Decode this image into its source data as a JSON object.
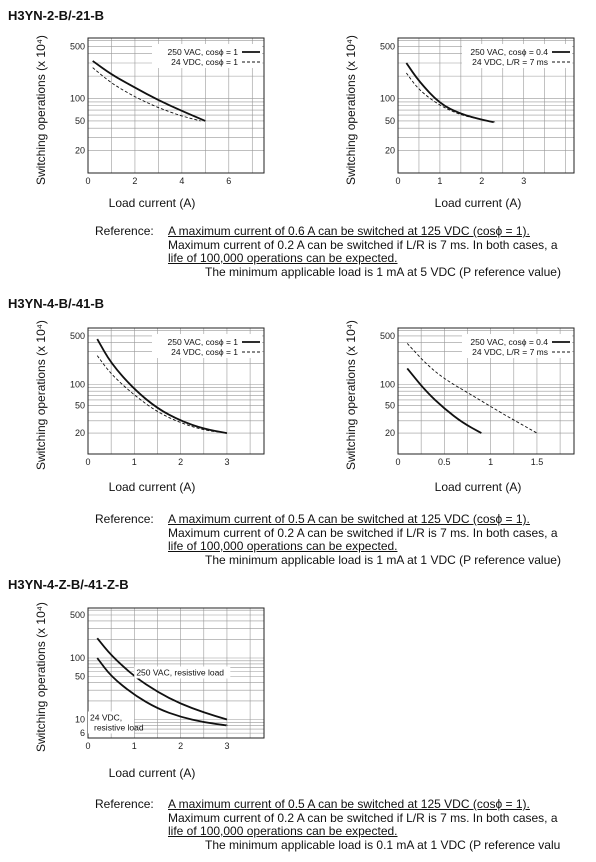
{
  "sections": [
    {
      "title": "H3YN-2-B/-21-B",
      "reference": {
        "label": "Reference:",
        "lines": [
          "A maximum current of 0.6 A can be switched at 125 VDC (cosϕ = 1).",
          "Maximum current of 0.2 A can be switched if L/R is 7 ms. In both cases, a",
          "life of 100,000 operations can be expected."
        ],
        "min_load": "The minimum applicable load is 1 mA at 5 VDC (P reference value)"
      }
    },
    {
      "title": "H3YN-4-B/-41-B",
      "reference": {
        "label": "Reference:",
        "lines": [
          "A maximum current of 0.5 A can be switched at 125 VDC (cosϕ = 1).",
          "Maximum current of 0.2 A can be switched if L/R is 7 ms. In both cases, a",
          "life of 100,000 operations can be expected."
        ],
        "min_load": "The minimum applicable load is 1 mA at 1 VDC (P reference value)"
      }
    },
    {
      "title": "H3YN-4-Z-B/-41-Z-B",
      "reference": {
        "label": "Reference:",
        "lines": [
          "A maximum current of 0.5 A can be switched at 125 VDC (cosϕ = 1).",
          "Maximum current of 0.2 A can be switched if L/R is 7 ms. In both cases, a",
          "life of 100,000 operations can be expected."
        ],
        "min_load": "The minimum applicable load is 0.1 mA at 1 VDC (P reference valu"
      }
    }
  ],
  "chart_data": [
    {
      "type": "line",
      "ylabel": "Switching operations (x 10⁴)",
      "xlabel": "Load current (A)",
      "xlim": [
        0,
        7.5
      ],
      "x_ticks": [
        0,
        2,
        4,
        6
      ],
      "ylim_log": [
        10,
        650
      ],
      "y_ticks": [
        500,
        100,
        50,
        20
      ],
      "grid": true,
      "y_scale": "log",
      "legend": "top-right",
      "series": [
        {
          "name": "250 VAC, cosϕ = 1",
          "style": "solid",
          "x": [
            0.2,
            1,
            2,
            3,
            4,
            5
          ],
          "y": [
            320,
            210,
            140,
            95,
            68,
            50
          ]
        },
        {
          "name": "24 VDC, cosϕ = 1",
          "style": "dashed",
          "x": [
            0.2,
            1,
            2,
            3,
            4,
            4.8
          ],
          "y": [
            260,
            160,
            105,
            75,
            58,
            50
          ]
        }
      ]
    },
    {
      "type": "line",
      "ylabel": "Switching operations (x 10⁴)",
      "xlabel": "Load current (A)",
      "xlim": [
        0,
        4.2
      ],
      "x_ticks": [
        0,
        1,
        2,
        3
      ],
      "ylim_log": [
        10,
        650
      ],
      "y_ticks": [
        500,
        100,
        50,
        20
      ],
      "grid": true,
      "y_scale": "log",
      "legend": "top-right",
      "series": [
        {
          "name": "250 VAC, cosϕ = 0.4",
          "style": "solid",
          "x": [
            0.2,
            0.5,
            1,
            1.5,
            2,
            2.3
          ],
          "y": [
            300,
            170,
            85,
            62,
            52,
            48
          ]
        },
        {
          "name": "24 VDC, L/R = 7 ms",
          "style": "dashed",
          "x": [
            0.2,
            0.5,
            1,
            1.5,
            2
          ],
          "y": [
            220,
            130,
            80,
            60,
            52
          ]
        }
      ]
    },
    {
      "type": "line",
      "ylabel": "Switching operations (x 10⁴)",
      "xlabel": "Load current (A)",
      "xlim": [
        0,
        3.8
      ],
      "x_ticks": [
        0,
        1,
        2,
        3
      ],
      "ylim_log": [
        10,
        650
      ],
      "y_ticks": [
        500,
        100,
        50,
        20
      ],
      "grid": true,
      "y_scale": "log",
      "legend": "top-right",
      "series": [
        {
          "name": "250 VAC, cosϕ = 1",
          "style": "solid",
          "x": [
            0.2,
            0.5,
            1,
            1.5,
            2,
            2.5,
            3
          ],
          "y": [
            450,
            200,
            85,
            45,
            30,
            23,
            20
          ]
        },
        {
          "name": "24 VDC, cosϕ = 1",
          "style": "dashed",
          "x": [
            0.2,
            0.5,
            1,
            1.5,
            2,
            2.5,
            3
          ],
          "y": [
            260,
            140,
            70,
            40,
            28,
            22,
            20
          ]
        }
      ]
    },
    {
      "type": "line",
      "ylabel": "Switching operations (x 10⁴)",
      "xlabel": "Load current (A)",
      "xlim": [
        0,
        1.9
      ],
      "x_ticks": [
        0,
        0.5,
        1,
        1.5
      ],
      "ylim_log": [
        10,
        650
      ],
      "y_ticks": [
        500,
        100,
        50,
        20
      ],
      "grid": true,
      "y_scale": "log",
      "legend": "top-right",
      "series": [
        {
          "name": "250 VAC, cosϕ = 0.4",
          "style": "solid",
          "x": [
            0.1,
            0.3,
            0.5,
            0.7,
            0.9
          ],
          "y": [
            170,
            80,
            45,
            28,
            20
          ]
        },
        {
          "name": "24 VDC, L/R = 7 ms",
          "style": "dashed",
          "x": [
            0.1,
            0.3,
            0.5,
            0.8,
            1.1,
            1.5
          ],
          "y": [
            390,
            200,
            120,
            70,
            40,
            20
          ]
        }
      ]
    },
    {
      "type": "line",
      "ylabel": "Switching operations (x 10⁴)",
      "xlabel": "Load current (A)",
      "xlim": [
        0,
        3.8
      ],
      "x_ticks": [
        0,
        1,
        2,
        3
      ],
      "ylim_log": [
        5,
        650
      ],
      "y_ticks": [
        500,
        100,
        50,
        10,
        6
      ],
      "grid": true,
      "y_scale": "log",
      "legend": "annotations",
      "series": [
        {
          "name": "250 VAC, resistive load",
          "style": "solid",
          "x": [
            0.2,
            0.5,
            1,
            1.5,
            2,
            2.5,
            3
          ],
          "y": [
            210,
            110,
            50,
            28,
            18,
            13,
            10
          ]
        },
        {
          "name": "24 VDC, resistive load",
          "style": "solid",
          "x": [
            0.2,
            0.5,
            1,
            1.5,
            2,
            2.5,
            3
          ],
          "y": [
            100,
            50,
            25,
            15,
            11,
            9,
            8
          ]
        }
      ]
    }
  ]
}
